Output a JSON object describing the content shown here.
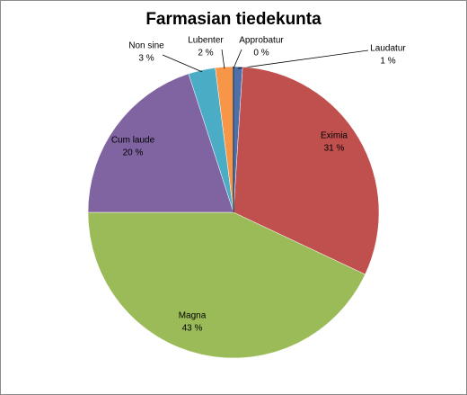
{
  "chart_data": {
    "type": "pie",
    "title": "Farmasian tiedekunta",
    "categories": [
      "Laudatur",
      "Eximia",
      "Magna",
      "Cum laude",
      "Non sine",
      "Lubenter",
      "Approbatur"
    ],
    "values": [
      1,
      31,
      43,
      20,
      3,
      2,
      0
    ],
    "value_labels": [
      "1 %",
      "31 %",
      "43 %",
      "20 %",
      "3 %",
      "2 %",
      "0 %"
    ],
    "colors": [
      "#4f6fa8",
      "#c0504d",
      "#9bbb59",
      "#8064a2",
      "#4bacc6",
      "#f79646",
      "#2c4d75"
    ]
  }
}
